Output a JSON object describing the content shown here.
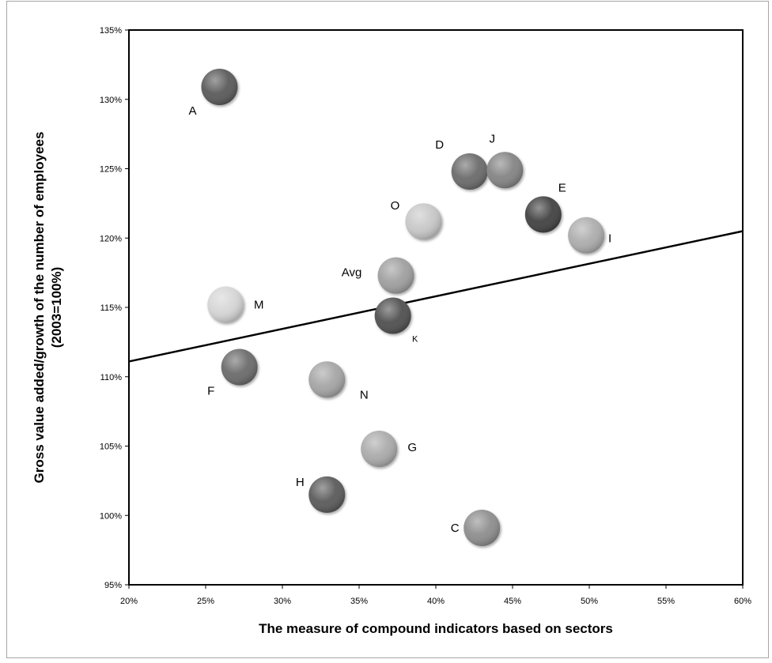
{
  "chart_data": {
    "type": "scatter",
    "xlabel": "The measure of compound indicators based on sectors",
    "ylabel_line1": "Gross value added/growth of the number of employees",
    "ylabel_line2": "(2003=100%)",
    "xlim": [
      0.2,
      0.6
    ],
    "ylim": [
      0.95,
      1.35
    ],
    "x_ticks": [
      "20%",
      "25%",
      "30%",
      "35%",
      "40%",
      "45%",
      "50%",
      "55%",
      "60%"
    ],
    "y_ticks": [
      "95%",
      "100%",
      "105%",
      "110%",
      "115%",
      "120%",
      "125%",
      "130%",
      "135%"
    ],
    "points": [
      {
        "label": "A",
        "x": 0.259,
        "y": 1.309,
        "color": "#555555"
      },
      {
        "label": "D",
        "x": 0.422,
        "y": 1.248,
        "color": "#666666"
      },
      {
        "label": "J",
        "x": 0.445,
        "y": 1.249,
        "color": "#808080"
      },
      {
        "label": "E",
        "x": 0.47,
        "y": 1.217,
        "color": "#3c3c3c"
      },
      {
        "label": "O",
        "x": 0.392,
        "y": 1.212,
        "color": "#c6c6c6"
      },
      {
        "label": "I",
        "x": 0.498,
        "y": 1.202,
        "color": "#aaaaaa"
      },
      {
        "label": "Avg",
        "x": 0.374,
        "y": 1.173,
        "color": "#9c9c9c"
      },
      {
        "label": "M",
        "x": 0.263,
        "y": 1.152,
        "color": "#d4d4d4"
      },
      {
        "label": "K",
        "x": 0.372,
        "y": 1.144,
        "color": "#4a4a4a"
      },
      {
        "label": "F",
        "x": 0.272,
        "y": 1.107,
        "color": "#666666"
      },
      {
        "label": "N",
        "x": 0.329,
        "y": 1.098,
        "color": "#a2a2a2"
      },
      {
        "label": "G",
        "x": 0.363,
        "y": 1.048,
        "color": "#a8a8a8"
      },
      {
        "label": "H",
        "x": 0.329,
        "y": 1.015,
        "color": "#555555"
      },
      {
        "label": "C",
        "x": 0.43,
        "y": 0.991,
        "color": "#8a8a8a"
      }
    ],
    "trendline": {
      "x": [
        0.2,
        0.6
      ],
      "y": [
        1.111,
        1.205
      ]
    },
    "grid": false,
    "legend": "none"
  }
}
